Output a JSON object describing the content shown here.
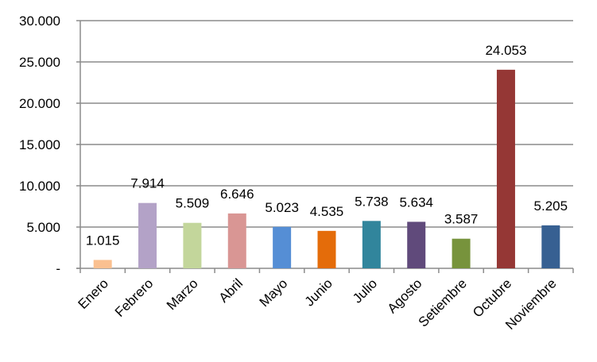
{
  "chart_data": {
    "type": "bar",
    "title": "",
    "xlabel": "",
    "ylabel": "",
    "categories": [
      "Enero",
      "Febrero",
      "Marzo",
      "Abril",
      "Mayo",
      "Junio",
      "Julio",
      "Agosto",
      "Setiembre",
      "Octubre",
      "Noviembre"
    ],
    "values": [
      1015,
      7914,
      5509,
      6646,
      5023,
      4535,
      5738,
      5634,
      3587,
      24053,
      5205
    ],
    "data_labels": [
      "1.015",
      "7.914",
      "5.509",
      "6.646",
      "5.023",
      "4.535",
      "5.738",
      "5.634",
      "3.587",
      "24.053",
      "5.205"
    ],
    "colors": [
      "#FAC090",
      "#B3A2C7",
      "#C3D69B",
      "#D99694",
      "#558ED5",
      "#E46C0A",
      "#31859C",
      "#604A7B",
      "#77933C",
      "#953735",
      "#376092"
    ],
    "ylim": [
      0,
      30000
    ],
    "y_ticks": [
      0,
      5000,
      10000,
      15000,
      20000,
      25000,
      30000
    ],
    "y_tick_labels": [
      "-",
      "5.000",
      "10.000",
      "15.000",
      "20.000",
      "25.000",
      "30.000"
    ],
    "grid": true,
    "legend": "none"
  }
}
